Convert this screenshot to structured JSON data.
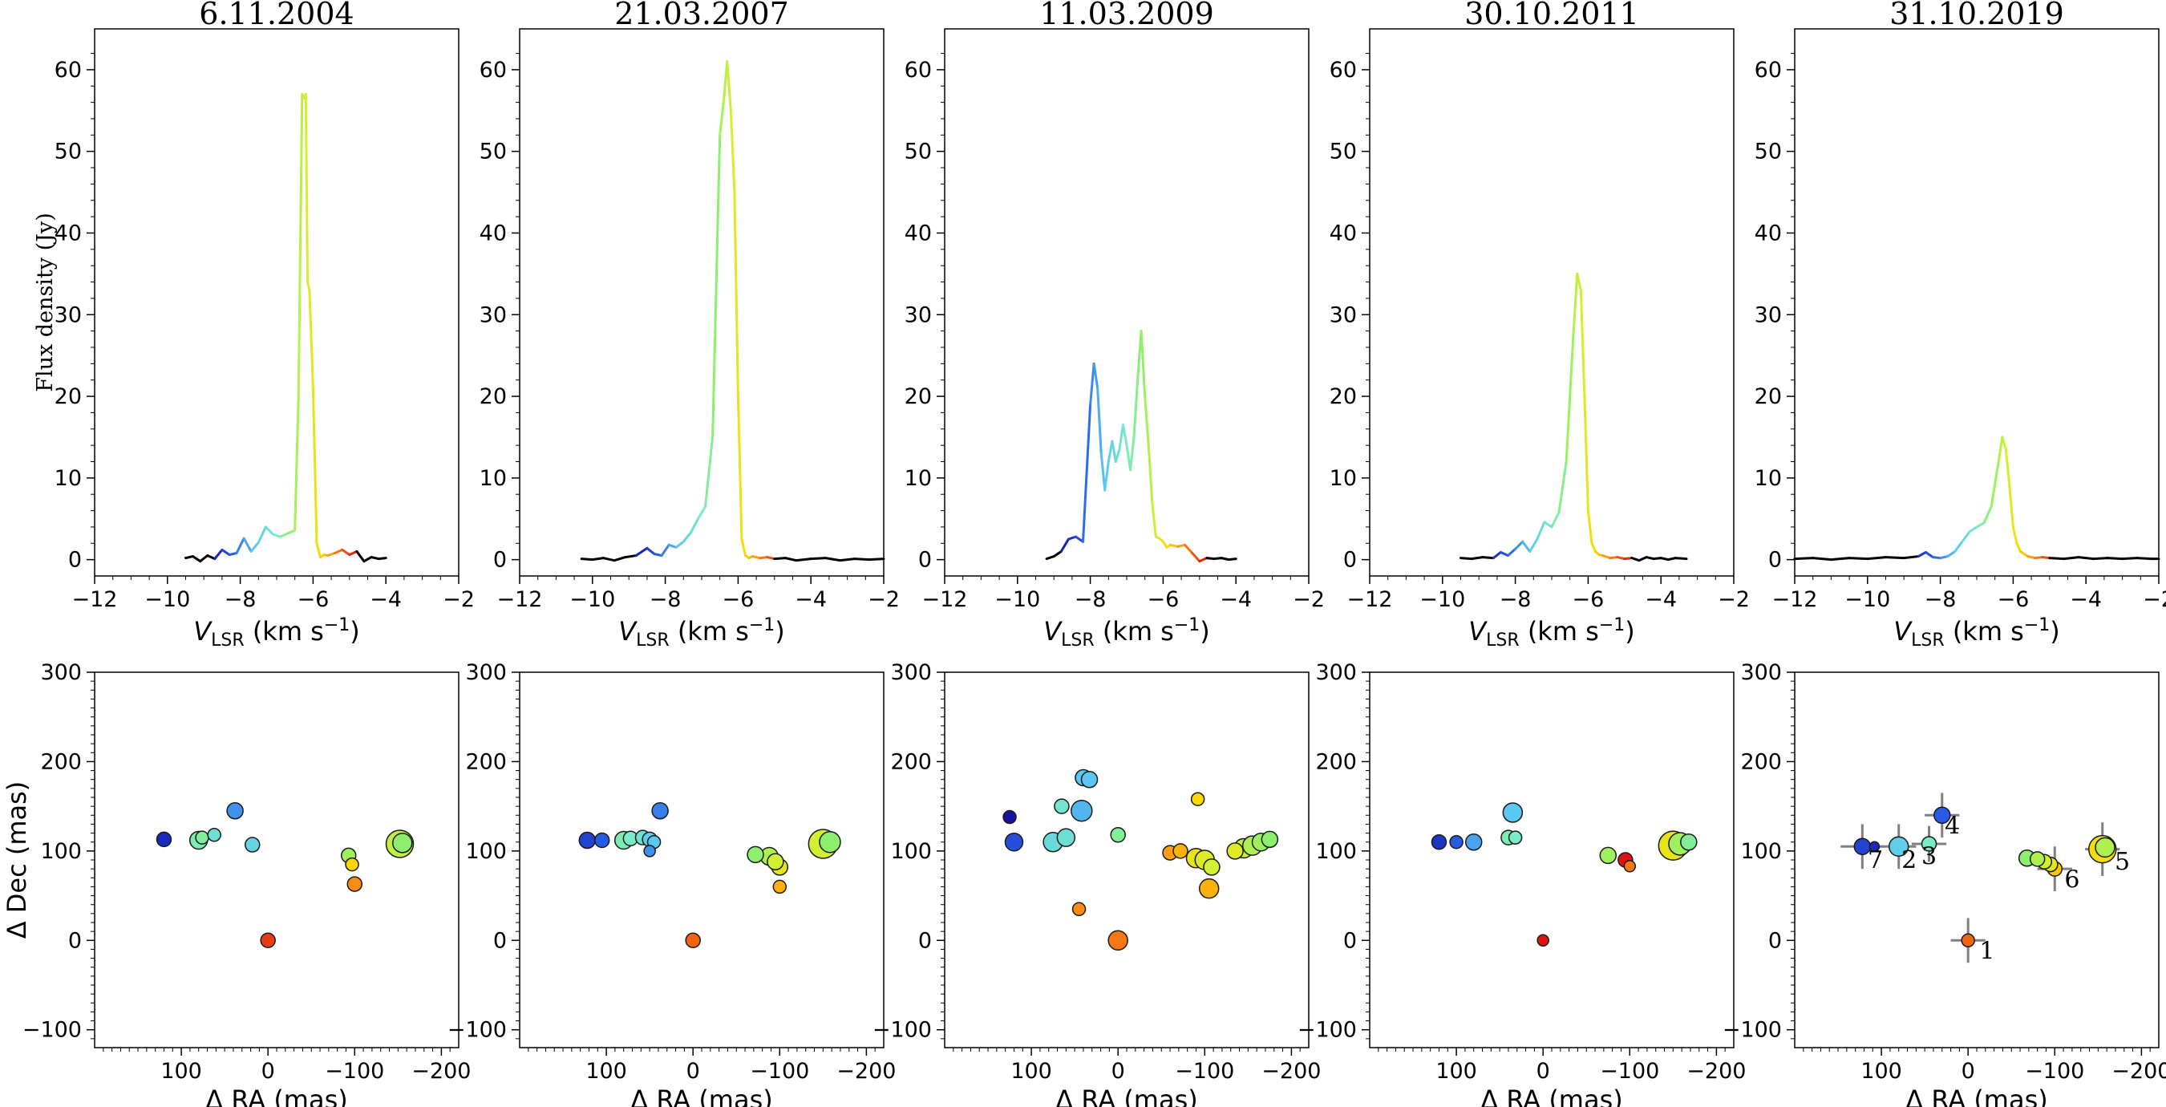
{
  "figure": {
    "epochs": [
      "6.11.2004",
      "21.03.2007",
      "11.03.2009",
      "30.10.2011",
      "31.10.2019"
    ]
  },
  "chart_data": [
    {
      "type": "line",
      "panel": "spectrum",
      "title": "6.11.2004",
      "xlabel": "V_LSR (km s^-1)",
      "ylabel": "Flux density (Jy)",
      "xlim": [
        -12,
        -2
      ],
      "ylim": [
        -2,
        65
      ],
      "xticks": [
        "−12",
        "−10",
        "−8",
        "−6",
        "−4",
        "−2"
      ],
      "yticks": [
        "0",
        "10",
        "20",
        "30",
        "40",
        "50",
        "60"
      ],
      "x": [
        -9.5,
        -9.3,
        -9.1,
        -8.9,
        -8.7,
        -8.5,
        -8.3,
        -8.1,
        -7.9,
        -7.7,
        -7.5,
        -7.3,
        -7.1,
        -6.9,
        -6.7,
        -6.5,
        -6.4,
        -6.3,
        -6.25,
        -6.2,
        -6.15,
        -6.1,
        -6.0,
        -5.9,
        -5.8,
        -5.7,
        -5.6,
        -5.4,
        -5.2,
        -5.0,
        -4.8,
        -4.6,
        -4.4,
        -4.2,
        -4.0
      ],
      "y": [
        0.2,
        0.4,
        -0.2,
        0.5,
        0.1,
        1.2,
        0.6,
        0.8,
        2.6,
        1.0,
        2.1,
        4.0,
        3.1,
        2.8,
        3.2,
        3.6,
        20.0,
        57.0,
        56.5,
        57.0,
        34.0,
        33.0,
        21.0,
        2.0,
        0.3,
        0.6,
        0.5,
        0.8,
        1.2,
        0.6,
        1.0,
        -0.2,
        0.3,
        0.1,
        0.2
      ]
    },
    {
      "type": "line",
      "panel": "spectrum",
      "title": "21.03.2007",
      "xlabel": "V_LSR (km s^-1)",
      "ylabel": "",
      "xlim": [
        -12,
        -2
      ],
      "ylim": [
        -2,
        65
      ],
      "xticks": [
        "−12",
        "−10",
        "−8",
        "−6",
        "−4",
        "−2"
      ],
      "yticks": [
        "0",
        "10",
        "20",
        "30",
        "40",
        "50",
        "60"
      ],
      "x": [
        -10.3,
        -10.0,
        -9.7,
        -9.4,
        -9.1,
        -8.8,
        -8.5,
        -8.3,
        -8.1,
        -7.9,
        -7.7,
        -7.5,
        -7.3,
        -7.1,
        -6.9,
        -6.7,
        -6.5,
        -6.4,
        -6.3,
        -6.2,
        -6.1,
        -6.0,
        -5.9,
        -5.8,
        -5.7,
        -5.6,
        -5.4,
        -5.2,
        -5.0,
        -4.7,
        -4.4,
        -4.0,
        -3.6,
        -3.2,
        -2.8,
        -2.4,
        -2.0
      ],
      "y": [
        0.1,
        0.0,
        0.2,
        -0.1,
        0.3,
        0.5,
        1.4,
        0.7,
        0.5,
        1.8,
        1.5,
        2.2,
        3.3,
        5.0,
        6.5,
        15.0,
        52.0,
        56.0,
        61.0,
        55.0,
        45.0,
        20.0,
        2.5,
        0.5,
        0.2,
        0.4,
        0.2,
        0.3,
        0.1,
        0.2,
        -0.1,
        0.1,
        0.2,
        -0.1,
        0.1,
        0.0,
        0.1
      ]
    },
    {
      "type": "line",
      "panel": "spectrum",
      "title": "11.03.2009",
      "xlabel": "V_LSR (km s^-1)",
      "ylabel": "",
      "xlim": [
        -12,
        -2
      ],
      "ylim": [
        -2,
        65
      ],
      "xticks": [
        "−12",
        "−10",
        "−8",
        "−6",
        "−4",
        "−2"
      ],
      "yticks": [
        "0",
        "10",
        "20",
        "30",
        "40",
        "50",
        "60"
      ],
      "x": [
        -9.2,
        -9.0,
        -8.8,
        -8.6,
        -8.4,
        -8.2,
        -8.0,
        -7.9,
        -7.8,
        -7.7,
        -7.6,
        -7.5,
        -7.4,
        -7.3,
        -7.2,
        -7.1,
        -7.0,
        -6.9,
        -6.8,
        -6.7,
        -6.6,
        -6.5,
        -6.4,
        -6.3,
        -6.2,
        -6.1,
        -6.0,
        -5.9,
        -5.8,
        -5.6,
        -5.4,
        -5.2,
        -5.0,
        -4.8,
        -4.6,
        -4.4,
        -4.2,
        -4.0
      ],
      "y": [
        0.1,
        0.4,
        1.0,
        2.5,
        2.8,
        2.2,
        19.0,
        24.0,
        21.0,
        13.0,
        8.5,
        12.0,
        14.5,
        12.0,
        13.5,
        16.5,
        14.0,
        11.0,
        15.0,
        22.0,
        28.0,
        20.0,
        14.0,
        7.0,
        2.8,
        2.6,
        2.2,
        1.5,
        1.8,
        1.6,
        1.8,
        0.8,
        -0.2,
        0.2,
        0.1,
        0.2,
        0.0,
        0.1
      ]
    },
    {
      "type": "line",
      "panel": "spectrum",
      "title": "30.10.2011",
      "xlabel": "V_LSR (km s^-1)",
      "ylabel": "",
      "xlim": [
        -12,
        -2
      ],
      "ylim": [
        -2,
        65
      ],
      "xticks": [
        "−12",
        "−10",
        "−8",
        "−6",
        "−4",
        "−2"
      ],
      "yticks": [
        "0",
        "10",
        "20",
        "30",
        "40",
        "50",
        "60"
      ],
      "x": [
        -9.5,
        -9.2,
        -8.9,
        -8.6,
        -8.4,
        -8.2,
        -8.0,
        -7.8,
        -7.6,
        -7.4,
        -7.2,
        -7.0,
        -6.8,
        -6.6,
        -6.4,
        -6.3,
        -6.2,
        -6.1,
        -6.0,
        -5.9,
        -5.8,
        -5.7,
        -5.6,
        -5.4,
        -5.2,
        -5.0,
        -4.8,
        -4.6,
        -4.4,
        -4.2,
        -4.0,
        -3.8,
        -3.6,
        -3.3
      ],
      "y": [
        0.2,
        0.1,
        0.3,
        0.2,
        0.9,
        0.5,
        1.3,
        2.2,
        1.0,
        2.5,
        4.6,
        4.0,
        5.8,
        12.0,
        28.0,
        35.0,
        33.0,
        20.0,
        6.0,
        2.0,
        1.0,
        0.6,
        0.5,
        0.2,
        0.3,
        0.1,
        0.2,
        -0.1,
        0.3,
        0.1,
        0.2,
        0.0,
        0.2,
        0.1
      ]
    },
    {
      "type": "line",
      "panel": "spectrum",
      "title": "31.10.2019",
      "xlabel": "V_LSR (km s^-1)",
      "ylabel": "",
      "xlim": [
        -12,
        -2
      ],
      "ylim": [
        -2,
        65
      ],
      "xticks": [
        "−12",
        "−10",
        "−8",
        "−6",
        "−4",
        "−2"
      ],
      "yticks": [
        "0",
        "10",
        "20",
        "30",
        "40",
        "50",
        "60"
      ],
      "x": [
        -12.0,
        -11.5,
        -11.0,
        -10.5,
        -10.0,
        -9.5,
        -9.0,
        -8.6,
        -8.4,
        -8.2,
        -8.0,
        -7.8,
        -7.6,
        -7.4,
        -7.2,
        -7.0,
        -6.8,
        -6.6,
        -6.4,
        -6.3,
        -6.2,
        -6.1,
        -6.0,
        -5.9,
        -5.8,
        -5.6,
        -5.4,
        -5.2,
        -5.0,
        -4.6,
        -4.2,
        -3.8,
        -3.4,
        -3.0,
        -2.6,
        -2.2,
        -2.0
      ],
      "y": [
        0.1,
        0.2,
        0.0,
        0.2,
        0.1,
        0.3,
        0.2,
        0.4,
        0.9,
        0.3,
        0.2,
        0.4,
        1.0,
        2.2,
        3.4,
        4.0,
        4.5,
        6.5,
        12.0,
        15.0,
        13.5,
        9.0,
        4.0,
        2.0,
        1.0,
        0.4,
        0.2,
        0.3,
        0.2,
        0.1,
        0.3,
        0.1,
        0.2,
        0.1,
        0.2,
        0.1,
        0.1
      ]
    },
    {
      "type": "scatter",
      "panel": "map",
      "title": "6.11.2004",
      "xlabel": "Δ RA (mas)",
      "ylabel": "Δ Dec (mas)",
      "xlim": [
        200,
        -220
      ],
      "ylim": [
        -120,
        300
      ],
      "xticks": [
        "100",
        "0",
        "−100",
        "−200"
      ],
      "yticks": [
        "−100",
        "0",
        "100",
        "200",
        "300"
      ],
      "points": [
        {
          "x": 0,
          "y": 0,
          "v": -5.0,
          "s": 9
        },
        {
          "x": -100,
          "y": 63,
          "v": -5.4,
          "s": 9
        },
        {
          "x": -97,
          "y": 85,
          "v": -5.8,
          "s": 8
        },
        {
          "x": -93,
          "y": 95,
          "v": -6.5,
          "s": 9
        },
        {
          "x": -152,
          "y": 108,
          "v": -6.3,
          "s": 17
        },
        {
          "x": -155,
          "y": 109,
          "v": -6.6,
          "s": 12
        },
        {
          "x": 80,
          "y": 112,
          "v": -6.9,
          "s": 11
        },
        {
          "x": 76,
          "y": 115,
          "v": -6.8,
          "s": 8
        },
        {
          "x": 62,
          "y": 118,
          "v": -7.2,
          "s": 8
        },
        {
          "x": 18,
          "y": 107,
          "v": -7.4,
          "s": 9
        },
        {
          "x": 38,
          "y": 145,
          "v": -7.9,
          "s": 10
        },
        {
          "x": 120,
          "y": 113,
          "v": -8.6,
          "s": 9
        }
      ]
    },
    {
      "type": "scatter",
      "panel": "map",
      "title": "21.03.2007",
      "xlabel": "Δ RA (mas)",
      "ylabel": "",
      "xlim": [
        200,
        -220
      ],
      "ylim": [
        -120,
        300
      ],
      "xticks": [
        "100",
        "0",
        "−100",
        "−200"
      ],
      "yticks": [
        "−100",
        "0",
        "100",
        "200",
        "300"
      ],
      "points": [
        {
          "x": 0,
          "y": 0,
          "v": -5.2,
          "s": 9
        },
        {
          "x": -100,
          "y": 60,
          "v": -5.6,
          "s": 8
        },
        {
          "x": -100,
          "y": 82,
          "v": -6.0,
          "s": 10
        },
        {
          "x": -95,
          "y": 88,
          "v": -6.2,
          "s": 10
        },
        {
          "x": -88,
          "y": 94,
          "v": -6.4,
          "s": 11
        },
        {
          "x": -72,
          "y": 96,
          "v": -6.6,
          "s": 10
        },
        {
          "x": -150,
          "y": 108,
          "v": -6.2,
          "s": 18
        },
        {
          "x": -158,
          "y": 110,
          "v": -6.6,
          "s": 13
        },
        {
          "x": 80,
          "y": 112,
          "v": -6.9,
          "s": 11
        },
        {
          "x": 72,
          "y": 114,
          "v": -7.0,
          "s": 9
        },
        {
          "x": 58,
          "y": 115,
          "v": -7.2,
          "s": 9
        },
        {
          "x": 50,
          "y": 113,
          "v": -7.5,
          "s": 9
        },
        {
          "x": 45,
          "y": 110,
          "v": -7.6,
          "s": 8
        },
        {
          "x": 50,
          "y": 100,
          "v": -7.9,
          "s": 7
        },
        {
          "x": 38,
          "y": 145,
          "v": -8.0,
          "s": 10
        },
        {
          "x": 105,
          "y": 112,
          "v": -8.2,
          "s": 9
        },
        {
          "x": 122,
          "y": 112,
          "v": -8.4,
          "s": 10
        }
      ]
    },
    {
      "type": "scatter",
      "panel": "map",
      "title": "11.03.2009",
      "xlabel": "Δ RA (mas)",
      "ylabel": "",
      "xlim": [
        200,
        -220
      ],
      "ylim": [
        -120,
        300
      ],
      "xticks": [
        "100",
        "0",
        "−100",
        "−200"
      ],
      "yticks": [
        "−100",
        "0",
        "100",
        "200",
        "300"
      ],
      "points": [
        {
          "x": 0,
          "y": 0,
          "v": -5.3,
          "s": 12
        },
        {
          "x": 45,
          "y": 35,
          "v": -5.4,
          "s": 8
        },
        {
          "x": -105,
          "y": 58,
          "v": -5.6,
          "s": 12
        },
        {
          "x": -92,
          "y": 158,
          "v": -5.8,
          "s": 8
        },
        {
          "x": -60,
          "y": 98,
          "v": -5.5,
          "s": 9
        },
        {
          "x": -72,
          "y": 100,
          "v": -5.6,
          "s": 9
        },
        {
          "x": -90,
          "y": 92,
          "v": -6.0,
          "s": 12
        },
        {
          "x": -100,
          "y": 90,
          "v": -6.1,
          "s": 12
        },
        {
          "x": -108,
          "y": 82,
          "v": -6.2,
          "s": 10
        },
        {
          "x": -135,
          "y": 100,
          "v": -6.1,
          "s": 10
        },
        {
          "x": -145,
          "y": 103,
          "v": -6.3,
          "s": 12
        },
        {
          "x": -155,
          "y": 106,
          "v": -6.4,
          "s": 12
        },
        {
          "x": -165,
          "y": 110,
          "v": -6.5,
          "s": 11
        },
        {
          "x": -175,
          "y": 113,
          "v": -6.6,
          "s": 10
        },
        {
          "x": 0,
          "y": 118,
          "v": -6.8,
          "s": 9
        },
        {
          "x": 65,
          "y": 150,
          "v": -7.1,
          "s": 9
        },
        {
          "x": 75,
          "y": 110,
          "v": -7.3,
          "s": 12
        },
        {
          "x": 60,
          "y": 115,
          "v": -7.2,
          "s": 11
        },
        {
          "x": 42,
          "y": 145,
          "v": -7.7,
          "s": 13
        },
        {
          "x": 40,
          "y": 182,
          "v": -7.6,
          "s": 10
        },
        {
          "x": 33,
          "y": 180,
          "v": -7.6,
          "s": 10
        },
        {
          "x": 120,
          "y": 110,
          "v": -8.3,
          "s": 11
        },
        {
          "x": 125,
          "y": 138,
          "v": -8.8,
          "s": 8
        }
      ]
    },
    {
      "type": "scatter",
      "panel": "map",
      "title": "30.10.2011",
      "xlabel": "Δ RA (mas)",
      "ylabel": "",
      "xlim": [
        200,
        -220
      ],
      "ylim": [
        -120,
        300
      ],
      "xticks": [
        "100",
        "0",
        "−100",
        "−200"
      ],
      "yticks": [
        "−100",
        "0",
        "100",
        "200",
        "300"
      ],
      "points": [
        {
          "x": 0,
          "y": 0,
          "v": -4.5,
          "s": 7
        },
        {
          "x": -100,
          "y": 83,
          "v": -5.3,
          "s": 7
        },
        {
          "x": -95,
          "y": 90,
          "v": -4.6,
          "s": 9
        },
        {
          "x": -75,
          "y": 95,
          "v": -6.5,
          "s": 10
        },
        {
          "x": -150,
          "y": 106,
          "v": -6.0,
          "s": 18
        },
        {
          "x": -158,
          "y": 108,
          "v": -6.5,
          "s": 14
        },
        {
          "x": -168,
          "y": 110,
          "v": -6.8,
          "s": 10
        },
        {
          "x": 40,
          "y": 115,
          "v": -6.9,
          "s": 9
        },
        {
          "x": 32,
          "y": 115,
          "v": -7.0,
          "s": 8
        },
        {
          "x": 35,
          "y": 143,
          "v": -7.6,
          "s": 12
        },
        {
          "x": 80,
          "y": 110,
          "v": -7.8,
          "s": 10
        },
        {
          "x": 100,
          "y": 110,
          "v": -8.2,
          "s": 8
        },
        {
          "x": 120,
          "y": 110,
          "v": -8.5,
          "s": 9
        }
      ]
    },
    {
      "type": "scatter",
      "panel": "map",
      "title": "31.10.2019",
      "xlabel": "Δ RA (mas)",
      "ylabel": "",
      "xlim": [
        200,
        -220
      ],
      "ylim": [
        -120,
        300
      ],
      "xticks": [
        "100",
        "0",
        "−100",
        "−200"
      ],
      "yticks": [
        "−100",
        "0",
        "100",
        "200",
        "300"
      ],
      "points": [
        {
          "x": 0,
          "y": 0,
          "v": -5.2,
          "s": 8,
          "errx": 20,
          "erry": 25
        },
        {
          "x": -100,
          "y": 80,
          "v": -5.7,
          "s": 9,
          "errx": 20,
          "erry": 25
        },
        {
          "x": -95,
          "y": 85,
          "v": -6.0,
          "s": 9
        },
        {
          "x": -88,
          "y": 88,
          "v": -6.2,
          "s": 9
        },
        {
          "x": -80,
          "y": 91,
          "v": -6.4,
          "s": 9
        },
        {
          "x": -68,
          "y": 92,
          "v": -6.6,
          "s": 10
        },
        {
          "x": -155,
          "y": 102,
          "v": -5.9,
          "s": 17,
          "errx": 20,
          "erry": 30
        },
        {
          "x": -158,
          "y": 104,
          "v": -6.4,
          "s": 12
        },
        {
          "x": 30,
          "y": 140,
          "v": -8.2,
          "s": 10,
          "errx": 20,
          "erry": 25
        },
        {
          "x": 45,
          "y": 108,
          "v": -7.0,
          "s": 9,
          "errx": 20,
          "erry": 20
        },
        {
          "x": 80,
          "y": 105,
          "v": -7.5,
          "s": 12,
          "errx": 20,
          "erry": 25
        },
        {
          "x": 122,
          "y": 105,
          "v": -8.4,
          "s": 10,
          "errx": 25,
          "erry": 25
        },
        {
          "x": 108,
          "y": 105,
          "v": -8.6,
          "s": 6
        }
      ],
      "annotations": [
        {
          "text": "1",
          "x": -22,
          "y": -10
        },
        {
          "text": "2",
          "x": 68,
          "y": 92
        },
        {
          "text": "3",
          "x": 45,
          "y": 96
        },
        {
          "text": "4",
          "x": 18,
          "y": 130
        },
        {
          "text": "5",
          "x": -178,
          "y": 90
        },
        {
          "text": "6",
          "x": -120,
          "y": 70
        },
        {
          "text": "7",
          "x": 107,
          "y": 92
        }
      ]
    }
  ]
}
